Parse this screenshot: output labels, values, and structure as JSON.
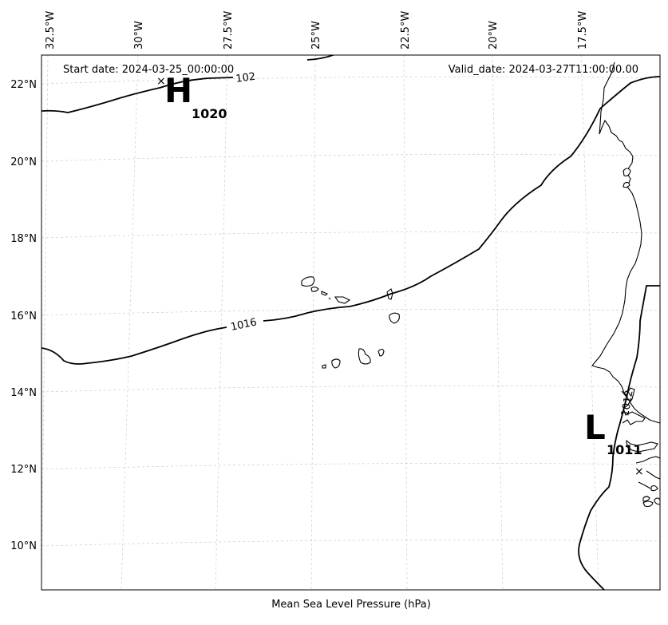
{
  "info": {
    "start_date": "Start date: 2024-03-25_00:00:00",
    "valid_date": "Valid_date: 2024-03-27T11:00:00.00"
  },
  "xlabel": "Mean Sea Level Pressure (hPa)",
  "lon_labels": [
    "32.5°W",
    "30°W",
    "27.5°W",
    "25°W",
    "22.5°W",
    "20°W",
    "17.5°W"
  ],
  "lat_labels": [
    "22°N",
    "20°N",
    "18°N",
    "16°N",
    "14°N",
    "12°N",
    "10°N"
  ],
  "pressure_centers": {
    "high": {
      "letter": "H",
      "value": "1020"
    },
    "low": {
      "letter": "L",
      "value": "1011"
    }
  },
  "contours": {
    "c1016": "1016",
    "c1020_partial": "102",
    "c1012_partial": "1012"
  }
}
